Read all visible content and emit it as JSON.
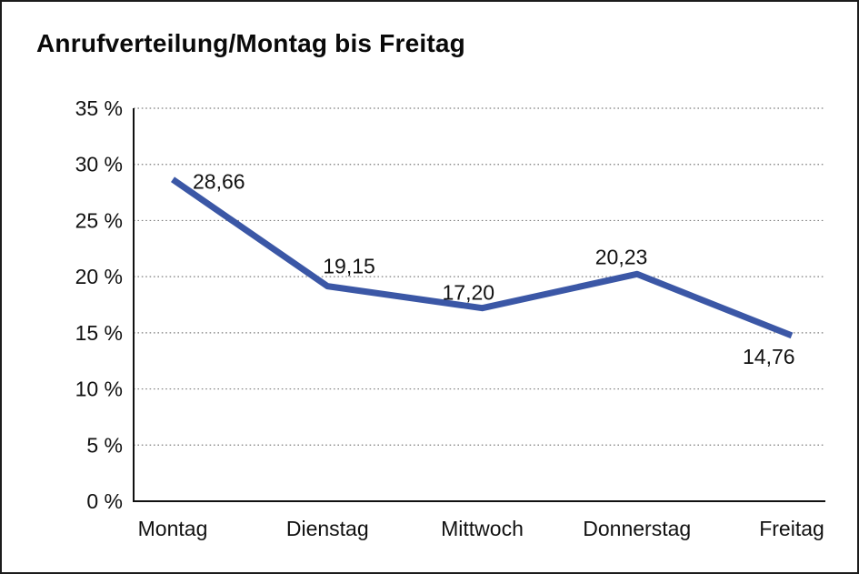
{
  "chart_data": {
    "type": "line",
    "title": "Anrufverteilung/Montag bis Freitag",
    "categories": [
      "Montag",
      "Dienstag",
      "Mittwoch",
      "Donnerstag",
      "Freitag"
    ],
    "values": [
      28.66,
      19.15,
      17.2,
      20.23,
      14.76
    ],
    "value_labels": [
      "28,66",
      "19,15",
      "17,20",
      "20,23",
      "14,76"
    ],
    "y_tick_labels": [
      "0 %",
      "5 %",
      "10 %",
      "15 %",
      "20 %",
      "25 %",
      "30 %",
      "35 %"
    ],
    "y_tick_values": [
      0,
      5,
      10,
      15,
      20,
      25,
      30,
      35
    ],
    "ylim": [
      0,
      35
    ],
    "xlabel": "",
    "ylabel": "",
    "legend": "none",
    "grid": "horizontal-dotted",
    "line_color": "#3B57A6",
    "axis_color": "#111111",
    "grid_color": "#7f7f7f"
  }
}
